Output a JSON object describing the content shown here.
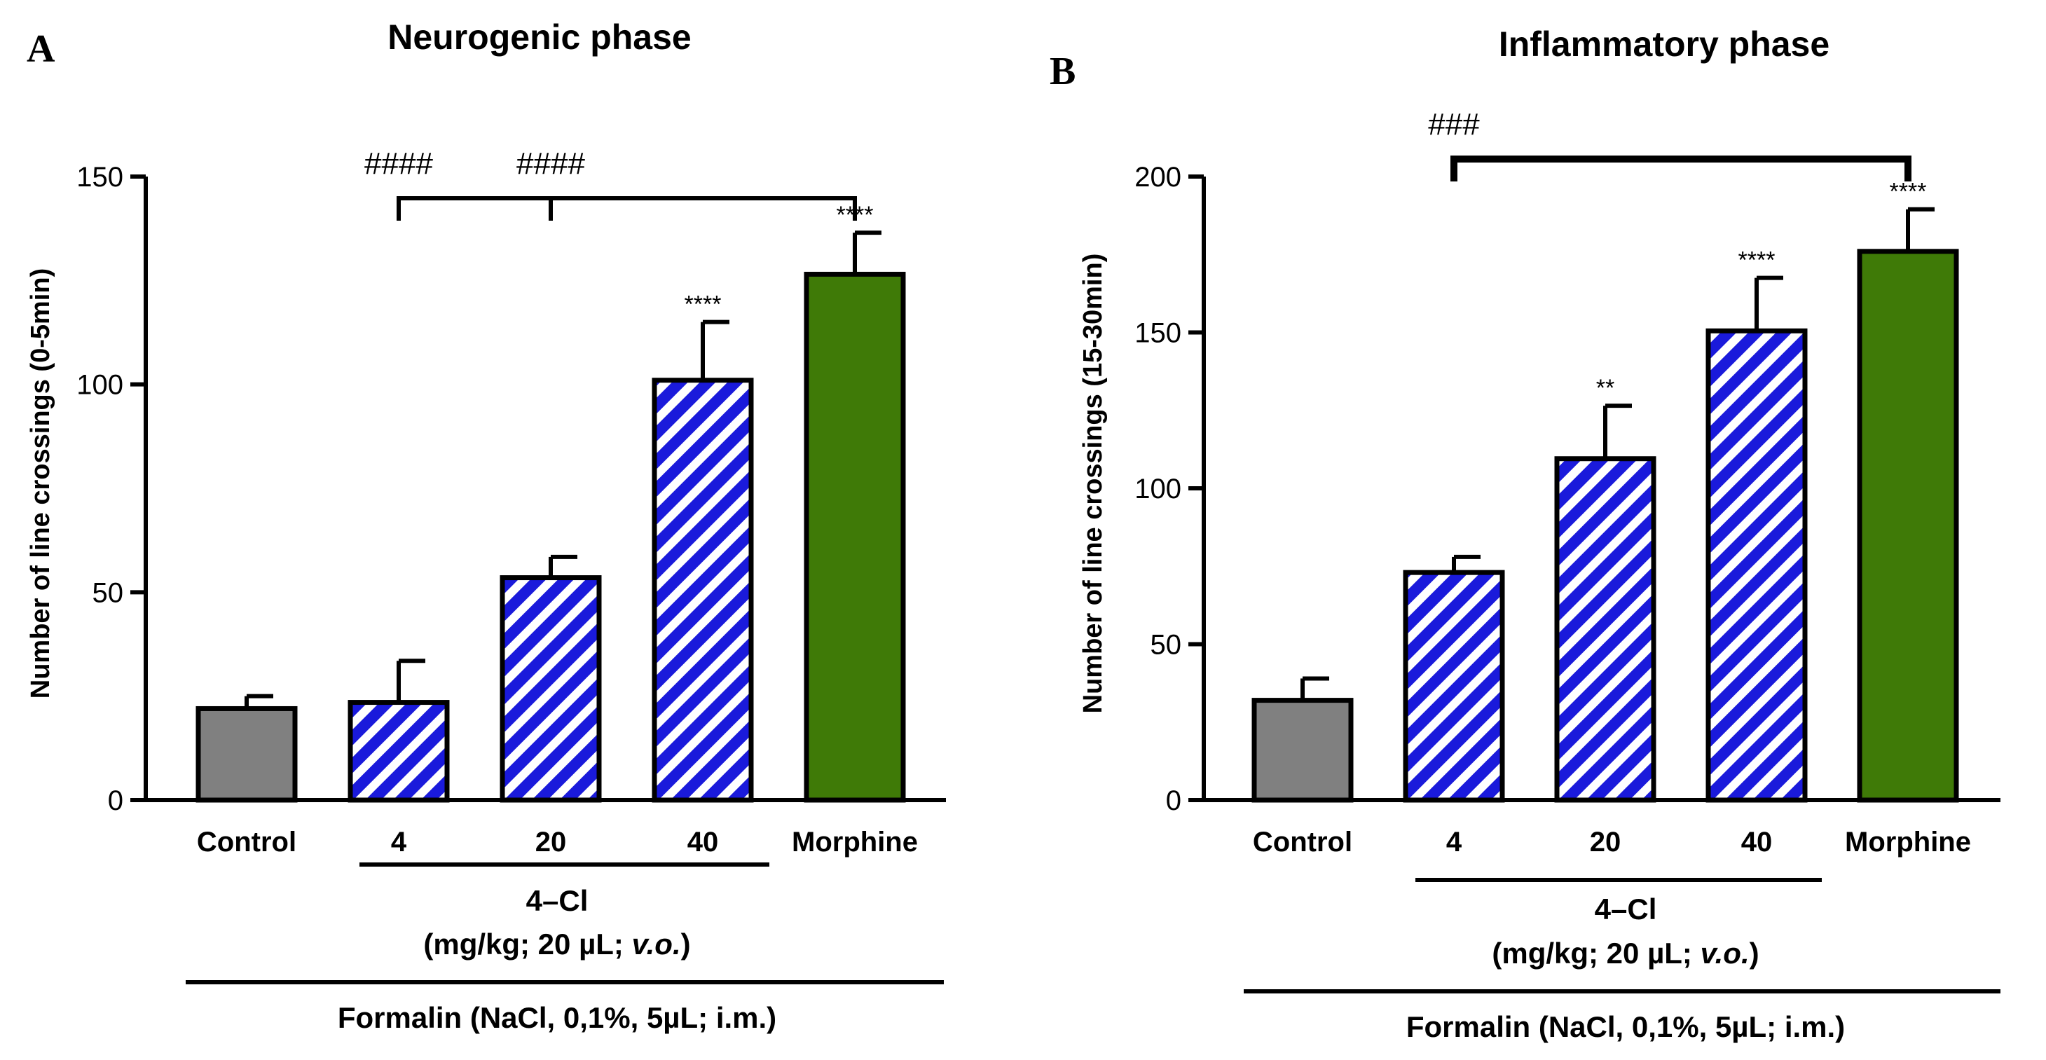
{
  "chart_data": [
    {
      "type": "bar",
      "panel": "A",
      "title": "Neurogenic phase",
      "ylabel": "Number of line crossings (0-5min)",
      "xlabel": "",
      "ylim": [
        0,
        150
      ],
      "yticks": [
        0,
        50,
        100,
        150
      ],
      "categories": [
        "Control",
        "4",
        "20",
        "40",
        "Morphine"
      ],
      "values": [
        22,
        23.5,
        53.5,
        101,
        126.5
      ],
      "errors": [
        3,
        10,
        5,
        14,
        10
      ],
      "significance": [
        "",
        "",
        "",
        "****",
        "****"
      ],
      "fills": [
        "gray",
        "striped",
        "striped",
        "striped",
        "green"
      ],
      "comparison": {
        "from": 1,
        "to": 4,
        "middle": 2,
        "labels": [
          "####",
          "####"
        ]
      },
      "group_label": "4–Cl",
      "group_sublabel_pre": "(mg/kg; 20 µL; ",
      "group_sublabel_em": "v.o.",
      "group_sublabel_post": ")",
      "treatment_label": "Formalin (NaCl, 0,1%, 5µL; i.m.)"
    },
    {
      "type": "bar",
      "panel": "B",
      "title": "Inflammatory phase",
      "ylabel": "Number of line crossings (15-30min)",
      "xlabel": "",
      "ylim": [
        0,
        200
      ],
      "yticks": [
        0,
        50,
        100,
        150,
        200
      ],
      "categories": [
        "Control",
        "4",
        "20",
        "40",
        "Morphine"
      ],
      "values": [
        32,
        73,
        109.5,
        150.5,
        176
      ],
      "errors": [
        7,
        5,
        17,
        17,
        13.5
      ],
      "significance": [
        "",
        "",
        "**",
        "****",
        "****"
      ],
      "fills": [
        "gray",
        "striped",
        "striped",
        "striped",
        "green"
      ],
      "comparison": {
        "from": 1,
        "to": 4,
        "middle": null,
        "labels": [
          "###"
        ]
      },
      "group_label": "4–Cl",
      "group_sublabel_pre": "(mg/kg; 20 µL; ",
      "group_sublabel_em": "v.o.",
      "group_sublabel_post": ")",
      "treatment_label": "Formalin (NaCl, 0,1%, 5µL; i.m.)"
    }
  ],
  "colors": {
    "control": "#808080",
    "stripe_blue": "#1a1adb",
    "stripe_white": "#ffffff",
    "morphine": "#3f7a07",
    "axis": "#000000"
  }
}
